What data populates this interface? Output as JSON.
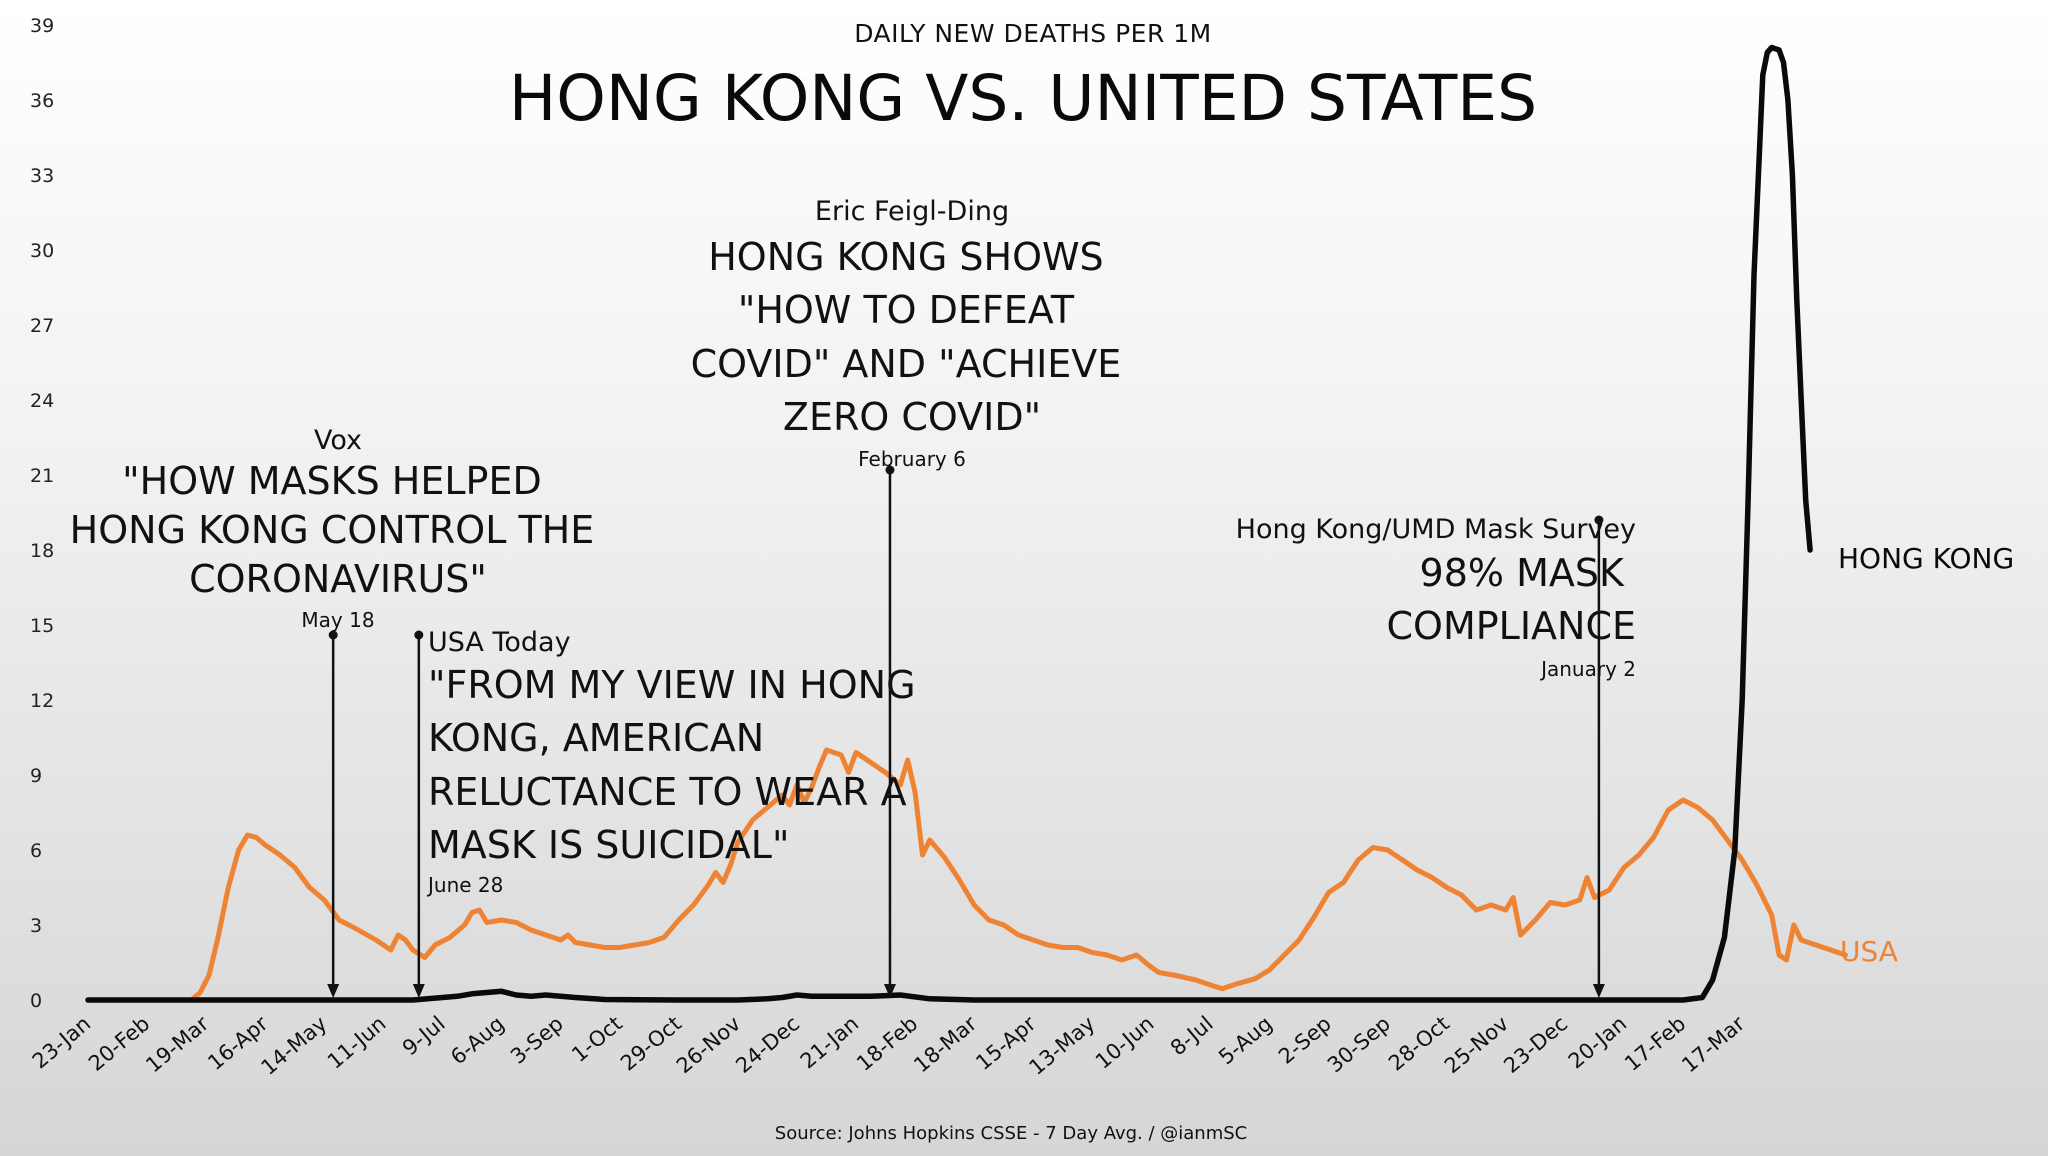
{
  "chart_data": {
    "type": "line",
    "suptitle": "DAILY NEW DEATHS PER 1M",
    "title": "HONG KONG VS. UNITED STATES",
    "source": "Source: Johns Hopkins CSSE - 7 Day Avg. / @ianmSC",
    "ylim": [
      0,
      39
    ],
    "yticks": [
      0,
      3,
      6,
      9,
      12,
      15,
      18,
      21,
      24,
      27,
      30,
      33,
      36,
      39
    ],
    "x_range_weeks": [
      0,
      117
    ],
    "x_ticks": [
      {
        "label": "23-Jan",
        "week": 0
      },
      {
        "label": "20-Feb",
        "week": 4
      },
      {
        "label": "19-Mar",
        "week": 8
      },
      {
        "label": "16-Apr",
        "week": 12
      },
      {
        "label": "14-May",
        "week": 16
      },
      {
        "label": "11-Jun",
        "week": 20
      },
      {
        "label": "9-Jul",
        "week": 24
      },
      {
        "label": "6-Aug",
        "week": 28
      },
      {
        "label": "3-Sep",
        "week": 32
      },
      {
        "label": "1-Oct",
        "week": 36
      },
      {
        "label": "29-Oct",
        "week": 40
      },
      {
        "label": "26-Nov",
        "week": 44
      },
      {
        "label": "24-Dec",
        "week": 48
      },
      {
        "label": "21-Jan",
        "week": 52
      },
      {
        "label": "18-Feb",
        "week": 56
      },
      {
        "label": "18-Mar",
        "week": 60
      },
      {
        "label": "15-Apr",
        "week": 64
      },
      {
        "label": "13-May",
        "week": 68
      },
      {
        "label": "10-Jun",
        "week": 72
      },
      {
        "label": "8-Jul",
        "week": 76
      },
      {
        "label": "5-Aug",
        "week": 80
      },
      {
        "label": "2-Sep",
        "week": 84
      },
      {
        "label": "30-Sep",
        "week": 88
      },
      {
        "label": "28-Oct",
        "week": 92
      },
      {
        "label": "25-Nov",
        "week": 96
      },
      {
        "label": "23-Dec",
        "week": 100
      },
      {
        "label": "20-Jan",
        "week": 104
      },
      {
        "label": "17-Feb",
        "week": 108
      },
      {
        "label": "17-Mar",
        "week": 112
      }
    ],
    "series": [
      {
        "name": "USA",
        "color": "#ee8433",
        "points": [
          [
            0,
            0
          ],
          [
            5,
            0
          ],
          [
            7,
            0
          ],
          [
            7.6,
            0.3
          ],
          [
            8.2,
            1
          ],
          [
            8.8,
            2.5
          ],
          [
            9.5,
            4.5
          ],
          [
            10.2,
            6
          ],
          [
            10.8,
            6.6
          ],
          [
            11.4,
            6.5
          ],
          [
            12,
            6.2
          ],
          [
            13,
            5.8
          ],
          [
            14,
            5.3
          ],
          [
            15,
            4.5
          ],
          [
            16,
            4
          ],
          [
            17,
            3.2
          ],
          [
            18,
            2.9
          ],
          [
            19.5,
            2.4
          ],
          [
            20.5,
            2
          ],
          [
            21,
            2.6
          ],
          [
            21.5,
            2.4
          ],
          [
            22,
            2
          ],
          [
            22.8,
            1.7
          ],
          [
            23.5,
            2.2
          ],
          [
            24.5,
            2.5
          ],
          [
            25.5,
            3
          ],
          [
            26,
            3.5
          ],
          [
            26.5,
            3.6
          ],
          [
            27,
            3.1
          ],
          [
            28,
            3.2
          ],
          [
            29,
            3.1
          ],
          [
            30,
            2.8
          ],
          [
            31,
            2.6
          ],
          [
            32,
            2.4
          ],
          [
            32.5,
            2.6
          ],
          [
            33,
            2.3
          ],
          [
            34,
            2.2
          ],
          [
            35,
            2.1
          ],
          [
            36,
            2.1
          ],
          [
            37,
            2.2
          ],
          [
            38,
            2.3
          ],
          [
            39,
            2.5
          ],
          [
            40,
            3.2
          ],
          [
            41,
            3.8
          ],
          [
            42,
            4.6
          ],
          [
            42.5,
            5.1
          ],
          [
            43,
            4.7
          ],
          [
            43.5,
            5.4
          ],
          [
            44,
            6.3
          ],
          [
            45,
            7.2
          ],
          [
            46,
            7.7
          ],
          [
            47,
            8.2
          ],
          [
            47.5,
            7.8
          ],
          [
            48,
            8.6
          ],
          [
            48.5,
            7.9
          ],
          [
            49,
            8.5
          ],
          [
            49.5,
            9.3
          ],
          [
            50,
            10
          ],
          [
            51,
            9.8
          ],
          [
            51.5,
            9.1
          ],
          [
            52,
            9.9
          ],
          [
            53,
            9.5
          ],
          [
            54,
            9.1
          ],
          [
            55,
            8.6
          ],
          [
            55.5,
            9.6
          ],
          [
            56,
            8.3
          ],
          [
            56.5,
            5.8
          ],
          [
            57,
            6.4
          ],
          [
            58,
            5.7
          ],
          [
            59,
            4.8
          ],
          [
            60,
            3.8
          ],
          [
            61,
            3.2
          ],
          [
            62,
            3.0
          ],
          [
            63,
            2.6
          ],
          [
            64,
            2.4
          ],
          [
            65,
            2.2
          ],
          [
            66,
            2.1
          ],
          [
            67,
            2.1
          ],
          [
            68,
            1.9
          ],
          [
            69,
            1.8
          ],
          [
            70,
            1.6
          ],
          [
            71,
            1.8
          ],
          [
            71.8,
            1.4
          ],
          [
            72.5,
            1.1
          ],
          [
            73.5,
            1.0
          ],
          [
            75,
            0.8
          ],
          [
            76,
            0.6
          ],
          [
            76.8,
            0.45
          ],
          [
            77.8,
            0.65
          ],
          [
            79,
            0.85
          ],
          [
            80,
            1.2
          ],
          [
            81,
            1.8
          ],
          [
            82,
            2.4
          ],
          [
            83,
            3.3
          ],
          [
            84,
            4.3
          ],
          [
            85,
            4.7
          ],
          [
            86,
            5.6
          ],
          [
            87,
            6.1
          ],
          [
            88,
            6.0
          ],
          [
            89,
            5.6
          ],
          [
            90,
            5.2
          ],
          [
            91,
            4.9
          ],
          [
            92,
            4.5
          ],
          [
            93,
            4.2
          ],
          [
            94,
            3.6
          ],
          [
            95,
            3.8
          ],
          [
            96,
            3.6
          ],
          [
            96.5,
            4.1
          ],
          [
            97,
            2.6
          ],
          [
            98,
            3.2
          ],
          [
            99,
            3.9
          ],
          [
            100,
            3.8
          ],
          [
            101,
            4
          ],
          [
            101.5,
            4.9
          ],
          [
            102,
            4.1
          ],
          [
            103,
            4.4
          ],
          [
            104,
            5.3
          ],
          [
            105,
            5.8
          ],
          [
            106,
            6.5
          ],
          [
            107,
            7.6
          ],
          [
            108,
            8
          ],
          [
            109,
            7.7
          ],
          [
            110,
            7.2
          ],
          [
            111,
            6.4
          ],
          [
            112,
            5.6
          ],
          [
            113,
            4.6
          ],
          [
            114,
            3.4
          ],
          [
            114.5,
            1.8
          ],
          [
            115,
            1.6
          ],
          [
            115.5,
            3.0
          ],
          [
            116,
            2.4
          ],
          [
            117,
            2.2
          ],
          [
            118,
            2.0
          ],
          [
            119,
            1.8
          ]
        ]
      },
      {
        "name": "HONG KONG",
        "color": "#0a0a0a",
        "points": [
          [
            0,
            0
          ],
          [
            22,
            0
          ],
          [
            24,
            0.1
          ],
          [
            25,
            0.15
          ],
          [
            26,
            0.25
          ],
          [
            27,
            0.3
          ],
          [
            28,
            0.35
          ],
          [
            29,
            0.2
          ],
          [
            30,
            0.15
          ],
          [
            31,
            0.2
          ],
          [
            32,
            0.15
          ],
          [
            33,
            0.1
          ],
          [
            35,
            0.02
          ],
          [
            40,
            0
          ],
          [
            44,
            0
          ],
          [
            46,
            0.05
          ],
          [
            47,
            0.1
          ],
          [
            48,
            0.2
          ],
          [
            49,
            0.15
          ],
          [
            51,
            0.15
          ],
          [
            53,
            0.15
          ],
          [
            55,
            0.2
          ],
          [
            57,
            0.05
          ],
          [
            60,
            0
          ],
          [
            66,
            0
          ],
          [
            80,
            0
          ],
          [
            100,
            0
          ],
          [
            108,
            0
          ],
          [
            109.3,
            0.1
          ],
          [
            110,
            0.8
          ],
          [
            110.8,
            2.5
          ],
          [
            111.5,
            6
          ],
          [
            112,
            12
          ],
          [
            112.4,
            20
          ],
          [
            112.8,
            29
          ],
          [
            113.1,
            33
          ],
          [
            113.4,
            37
          ],
          [
            113.7,
            37.9
          ],
          [
            114,
            38.1
          ],
          [
            114.5,
            38
          ],
          [
            114.8,
            37.5
          ],
          [
            115.1,
            36
          ],
          [
            115.4,
            33
          ],
          [
            115.7,
            28
          ],
          [
            116,
            24
          ],
          [
            116.3,
            20
          ],
          [
            116.6,
            18
          ]
        ]
      }
    ],
    "annotations": [
      {
        "source": "Vox",
        "headline": "\"HOW MASKS HELPED HONG KONG CONTROL THE CORONAVIRUS\"",
        "date": "May 18",
        "week": 16.6,
        "y": 14.6
      },
      {
        "source": "USA Today",
        "headline": "\"FROM MY VIEW IN HONG KONG, AMERICAN RELUCTANCE TO WEAR A MASK IS SUICIDAL\"",
        "date": "June 28",
        "week": 22.4,
        "y": 14.6
      },
      {
        "source": "Eric Feigl-Ding",
        "headline": "HONG KONG SHOWS \"HOW TO DEFEAT COVID\" AND \"ACHIEVE ZERO COVID\"",
        "date": "February 6",
        "week": 54.3,
        "y": 21.2
      },
      {
        "source": "Hong Kong/UMD Mask Survey",
        "headline": "98% MASK COMPLIANCE",
        "date": "January 2",
        "week": 102.3,
        "y": 19.2
      }
    ]
  }
}
